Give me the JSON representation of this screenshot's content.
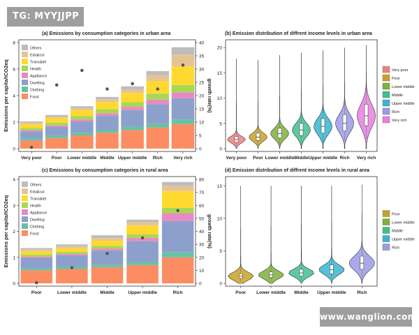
{
  "badges": {
    "top_left": "TG: MYYJJPP",
    "bottom_right": "www.wanglion.com"
  },
  "colors": {
    "Others": "#bdbdbd",
    "Edu&cul": "#e5c494",
    "Trans&tel": "#ffd92f",
    "Health": "#a6d854",
    "Appliance": "#e78ac3",
    "Dwelling": "#8da0cb",
    "Clothing": "#66c2a5",
    "Food": "#fc8d62",
    "Very poor": "#f08080",
    "Poor": "#c9a227",
    "Lower middle": "#7fb03a",
    "Middle": "#3fbf8f",
    "Upper middle": "#35b6d0",
    "Rich": "#9b9be6",
    "Very rich": "#e77fe0",
    "growth_point": "#555555"
  },
  "chart_data": [
    {
      "id": "a",
      "type": "bar",
      "title": "(a) Emissions by consumption categories in urban area",
      "ylabel": "Emissions per capita/tCO2eq",
      "ylabel_right": "growth rate(%)",
      "ylim": [
        0,
        8
      ],
      "y_ticks": [
        "0",
        "2",
        "4",
        "6",
        "8"
      ],
      "y2lim": [
        0,
        40
      ],
      "y2_ticks": [
        "0",
        "5",
        "10",
        "15",
        "20",
        "25",
        "30",
        "35",
        "40"
      ],
      "categories": [
        "Very poor",
        "Poor",
        "Lower middle",
        "Middle",
        "Upper middle",
        "Rich",
        "Very rich"
      ],
      "legend": "top-left",
      "series": [
        {
          "name": "Food",
          "values": [
            0.6,
            0.8,
            1.0,
            1.2,
            1.4,
            1.6,
            1.85
          ]
        },
        {
          "name": "Clothing",
          "values": [
            0.15,
            0.18,
            0.2,
            0.22,
            0.25,
            0.3,
            0.35
          ]
        },
        {
          "name": "Dwelling",
          "values": [
            0.55,
            0.65,
            0.85,
            1.05,
            1.25,
            1.45,
            1.6
          ]
        },
        {
          "name": "Appliance",
          "values": [
            0.1,
            0.12,
            0.15,
            0.2,
            0.25,
            0.35,
            0.45
          ]
        },
        {
          "name": "Health",
          "values": [
            0.15,
            0.2,
            0.25,
            0.3,
            0.35,
            0.45,
            0.55
          ]
        },
        {
          "name": "Trans&tel",
          "values": [
            0.3,
            0.35,
            0.45,
            0.55,
            0.7,
            0.95,
            1.4
          ]
        },
        {
          "name": "Edu&cul",
          "values": [
            0.1,
            0.12,
            0.15,
            0.2,
            0.25,
            0.45,
            0.9
          ]
        },
        {
          "name": "Others",
          "values": [
            0.1,
            0.12,
            0.15,
            0.18,
            0.25,
            0.3,
            0.55
          ]
        }
      ],
      "growth": [
        0.5,
        24,
        29.5,
        22.5,
        24.5,
        22.5,
        31.5
      ]
    },
    {
      "id": "b",
      "type": "violin",
      "title": "(b) Emission distribution of diffrent income levels in urban area",
      "ylim": [
        0,
        21
      ],
      "y_ticks": [
        "0",
        "5",
        "10",
        "15",
        "20"
      ],
      "categories": [
        "Very poor",
        "Poor",
        "Lower middle",
        "Middle",
        "Upper middle",
        "Rich",
        "Very rich"
      ],
      "legend": "right",
      "medians": [
        1.8,
        2.3,
        3.0,
        3.7,
        4.4,
        5.0,
        6.5
      ],
      "max": [
        17.8,
        17.5,
        18.5,
        19,
        19.5,
        20,
        20.5
      ]
    },
    {
      "id": "c",
      "type": "bar",
      "title": "(c) Emissions by consumption categories in rural area",
      "ylabel": "Emissions per capita/tCO2eq",
      "ylabel_right": "growth rate(%)",
      "ylim": [
        0,
        4
      ],
      "y_ticks": [
        "0",
        "1",
        "2",
        "3",
        "4"
      ],
      "y2lim": [
        0,
        80
      ],
      "y2_ticks": [
        "0",
        "10",
        "20",
        "30",
        "40",
        "50",
        "60",
        "70",
        "80"
      ],
      "categories": [
        "Poor",
        "Lower middle",
        "Middle",
        "Upper middle",
        "Rich"
      ],
      "legend": "top-left",
      "series": [
        {
          "name": "Food",
          "values": [
            0.5,
            0.55,
            0.62,
            0.7,
            1.0
          ]
        },
        {
          "name": "Clothing",
          "values": [
            0.08,
            0.08,
            0.1,
            0.12,
            0.2
          ]
        },
        {
          "name": "Dwelling",
          "values": [
            0.4,
            0.45,
            0.55,
            0.8,
            1.2
          ]
        },
        {
          "name": "Appliance",
          "values": [
            0.05,
            0.05,
            0.07,
            0.13,
            0.3
          ]
        },
        {
          "name": "Health",
          "values": [
            0.08,
            0.08,
            0.1,
            0.13,
            0.2
          ]
        },
        {
          "name": "Trans&tel",
          "values": [
            0.12,
            0.14,
            0.2,
            0.34,
            0.65
          ]
        },
        {
          "name": "Edu&cul",
          "values": [
            0.08,
            0.08,
            0.1,
            0.13,
            0.2
          ]
        },
        {
          "name": "Others",
          "values": [
            0.05,
            0.07,
            0.11,
            0.1,
            0.15
          ]
        }
      ],
      "growth": [
        0.5,
        12,
        23,
        35,
        56
      ]
    },
    {
      "id": "d",
      "type": "violin",
      "title": "(d) Emission distribution of diffrent income levels in rural area",
      "ylim": [
        0,
        16
      ],
      "y_ticks": [
        "0",
        "5",
        "10",
        "15"
      ],
      "categories": [
        "Poor",
        "Lower middle",
        "Middle",
        "Upper middle",
        "Rich"
      ],
      "legend": "right",
      "medians": [
        1.1,
        1.3,
        1.6,
        2.1,
        3.1
      ],
      "max": [
        15,
        15,
        15,
        15,
        15.2
      ]
    }
  ]
}
